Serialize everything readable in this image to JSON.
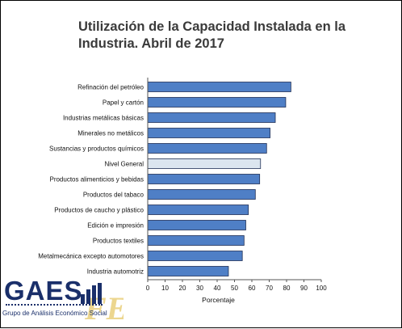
{
  "chart_data": {
    "type": "bar",
    "orientation": "horizontal",
    "title": "Utilización de la Capacidad Instalada en la Industria. Abril de 2017",
    "xlabel": "Porcentaje",
    "ylabel": "",
    "xlim": [
      0,
      100
    ],
    "xticks": [
      0,
      10,
      20,
      30,
      40,
      50,
      60,
      70,
      80,
      90,
      100
    ],
    "grid": false,
    "categories": [
      "Refinación del petróleo",
      "Papel y cartón",
      "Industrias metálicas básicas",
      "Minerales no metálicos",
      "Sustancias y productos químicos",
      "Nivel General",
      "Productos alimenticios y bebidas",
      "Productos del tabaco",
      "Productos de caucho y plástico",
      "Edición e impresión",
      "Productos textiles",
      "Metalmecánica excepto automotores",
      "Industria automotriz"
    ],
    "values": [
      82.5,
      79.5,
      73.5,
      70.5,
      68.5,
      65.0,
      64.5,
      62.0,
      58.0,
      56.5,
      55.5,
      54.5,
      46.5
    ],
    "highlight_category": "Nivel General",
    "colors": {
      "bar": "#4f7fc6",
      "bar_highlight": "#dbe5ef",
      "bar_stroke": "#1f2f55"
    }
  },
  "logo": {
    "word": "GAES",
    "subtitle": "Grupo de Análisis Económico Social",
    "watermark": "FEA"
  }
}
